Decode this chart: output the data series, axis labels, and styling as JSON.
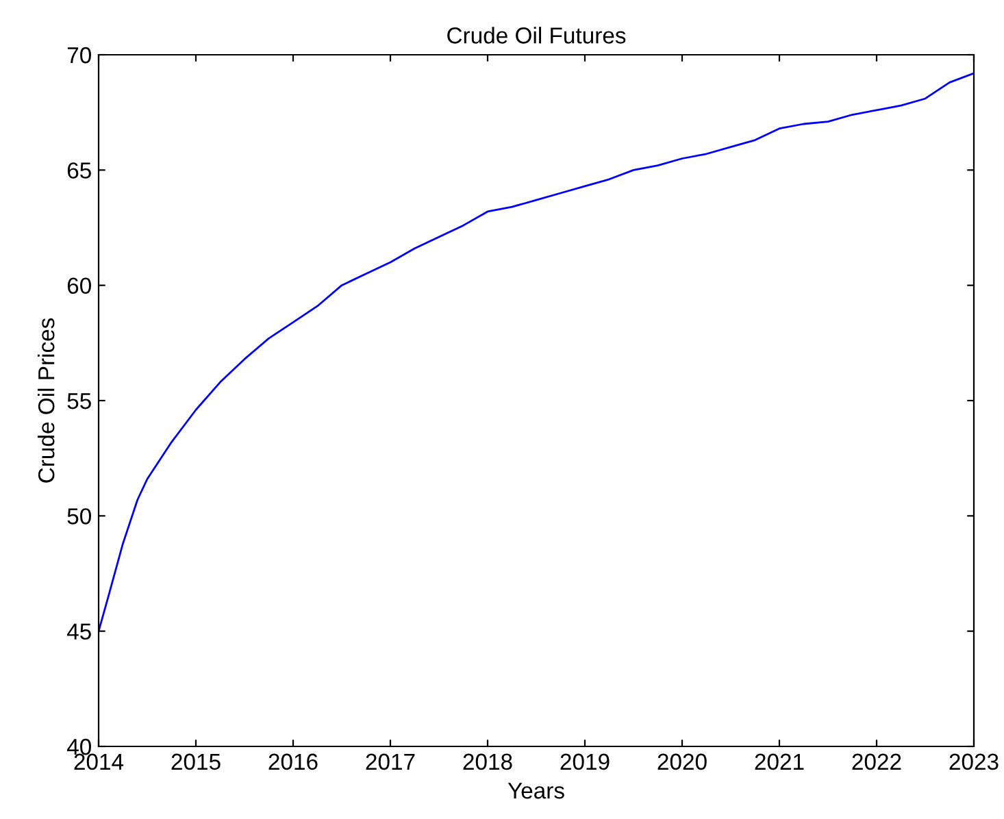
{
  "chart_data": {
    "type": "line",
    "title": "Crude Oil Futures",
    "xlabel": "Years",
    "ylabel": "Crude Oil Prices",
    "x": [
      2014.0,
      2014.1,
      2014.25,
      2014.4,
      2014.5,
      2014.75,
      2015.0,
      2015.25,
      2015.5,
      2015.75,
      2016.0,
      2016.25,
      2016.5,
      2016.75,
      2017.0,
      2017.25,
      2017.5,
      2017.75,
      2018.0,
      2018.25,
      2018.5,
      2018.75,
      2019.0,
      2019.25,
      2019.5,
      2019.75,
      2020.0,
      2020.25,
      2020.5,
      2020.75,
      2021.0,
      2021.25,
      2021.5,
      2021.75,
      2022.0,
      2022.25,
      2022.5,
      2022.75,
      2023.0
    ],
    "series": [
      {
        "color": "#0000ff",
        "values": [
          45.0,
          46.5,
          48.8,
          50.7,
          51.6,
          53.2,
          54.6,
          55.8,
          56.8,
          57.7,
          58.4,
          59.1,
          60.0,
          60.5,
          61.0,
          61.6,
          62.1,
          62.6,
          63.2,
          63.4,
          63.7,
          64.0,
          64.3,
          64.6,
          65.0,
          65.2,
          65.5,
          65.7,
          66.0,
          66.3,
          66.8,
          67.0,
          67.1,
          67.4,
          67.6,
          67.8,
          68.1,
          68.8,
          69.2
        ]
      }
    ],
    "xlim": [
      2014,
      2023
    ],
    "ylim": [
      40,
      70
    ],
    "xticks": [
      2014,
      2015,
      2016,
      2017,
      2018,
      2019,
      2020,
      2021,
      2022,
      2023
    ],
    "yticks": [
      40,
      45,
      50,
      55,
      60,
      65,
      70
    ],
    "grid": false,
    "marker": "none",
    "line_style": "solid"
  }
}
